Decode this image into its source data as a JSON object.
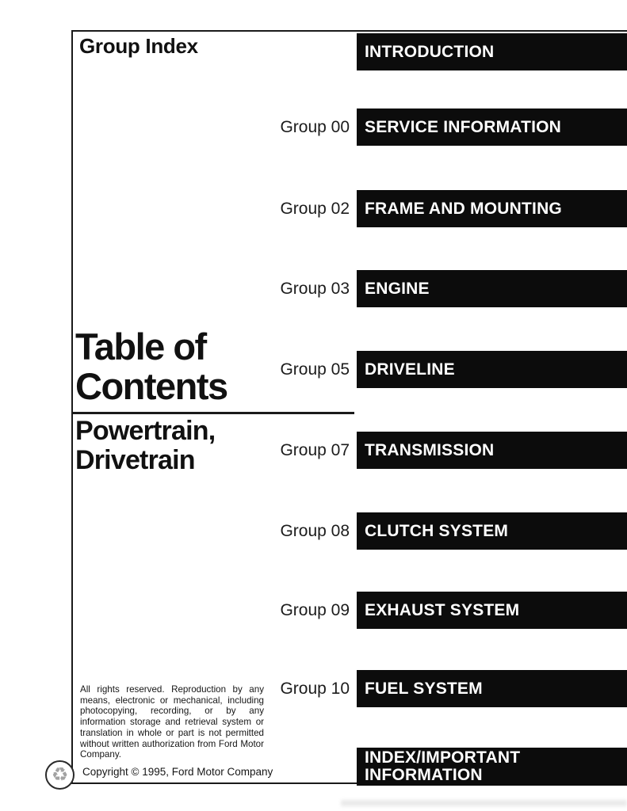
{
  "page": {
    "header": "Group Index",
    "title_line1": "Table of",
    "title_line2": "Contents",
    "subtitle_line1": "Powertrain,",
    "subtitle_line2": "Drivetrain",
    "rights_text": "All rights reserved. Reproduction by any means, electronic or mechanical, including photocopying, recording, or by any information storage and retrieval system or translation in whole or part is not permitted without written authorization from Ford Motor Company.",
    "copyright_line": "Copyright © 1995, Ford Motor Company",
    "recycle_icon_glyph": "♻"
  },
  "groups": [
    {
      "group": "",
      "label": "INTRODUCTION"
    },
    {
      "group": "Group 00",
      "label": "SERVICE INFORMATION"
    },
    {
      "group": "Group 02",
      "label": "FRAME AND MOUNTING"
    },
    {
      "group": "Group 03",
      "label": "ENGINE"
    },
    {
      "group": "Group 05",
      "label": "DRIVELINE"
    },
    {
      "group": "Group 07",
      "label": "TRANSMISSION"
    },
    {
      "group": "Group 08",
      "label": "CLUTCH SYSTEM"
    },
    {
      "group": "Group 09",
      "label": "EXHAUST SYSTEM"
    },
    {
      "group": "Group 10",
      "label": "FUEL SYSTEM"
    },
    {
      "group": "",
      "label": "INDEX/IMPORTANT INFORMATION"
    }
  ],
  "colors": {
    "bar_bg": "#0c0c0c",
    "bar_text": "#ffffff",
    "ink": "#111111",
    "recycle_gray": "#a2a2a2"
  }
}
